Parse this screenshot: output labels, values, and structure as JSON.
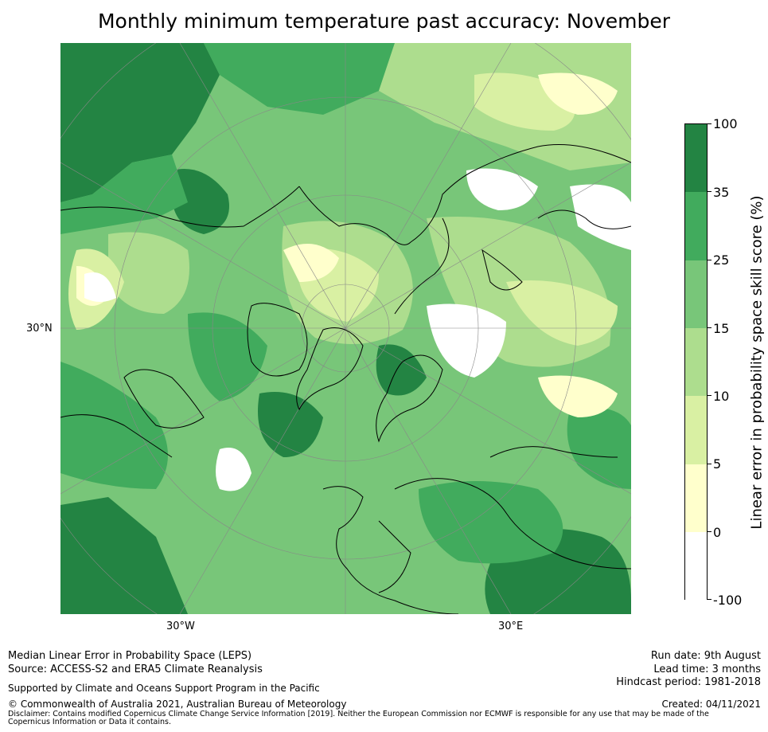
{
  "title": "Monthly minimum temperature past accuracy: November",
  "map": {
    "projection": "north-polar-stereographic",
    "labels": {
      "lat_30n": "30°N",
      "lon_30w": "30°W",
      "lon_30e": "30°E"
    },
    "colors": {
      "neg100_0": "#ffffff",
      "0_5": "#ffffcc",
      "5_10": "#d9f0a3",
      "10_15": "#addd8e",
      "15_25": "#78c679",
      "25_35": "#41ab5d",
      "35_100": "#238443",
      "coastline": "#000000",
      "gridline": "#888888"
    }
  },
  "colorbar": {
    "label": "Linear error in probability space skill score (%)",
    "ticks": [
      "100",
      "35",
      "25",
      "15",
      "10",
      "5",
      "0",
      "-100"
    ],
    "bins": [
      {
        "from": 35,
        "to": 100,
        "color": "#238443"
      },
      {
        "from": 25,
        "to": 35,
        "color": "#41ab5d"
      },
      {
        "from": 15,
        "to": 25,
        "color": "#78c679"
      },
      {
        "from": 10,
        "to": 15,
        "color": "#addd8e"
      },
      {
        "from": 5,
        "to": 10,
        "color": "#d9f0a3"
      },
      {
        "from": 0,
        "to": 5,
        "color": "#ffffcc"
      },
      {
        "from": -100,
        "to": 0,
        "color": "#ffffff"
      }
    ]
  },
  "footer": {
    "method": "Median Linear Error in Probability Space (LEPS)",
    "source": "Source: ACCESS-S2 and ERA5 Climate Reanalysis",
    "support": "Supported by Climate and Oceans Support Program in the Pacific",
    "copyright": "© Commonwealth of Australia 2021, Australian Bureau of Meteorology",
    "disclaimer": "Disclaimer: Contains modified Copernicus Climate Change Service Information [2019]. Neither the European Commission nor ECMWF is responsible for any use that may be made of the Copernicus Information or Data it contains.",
    "run_date": "Run date: 9th August",
    "lead_time": "Lead time: 3 months",
    "hindcast": "Hindcast period: 1981-2018",
    "created": "Created: 04/11/2021"
  }
}
